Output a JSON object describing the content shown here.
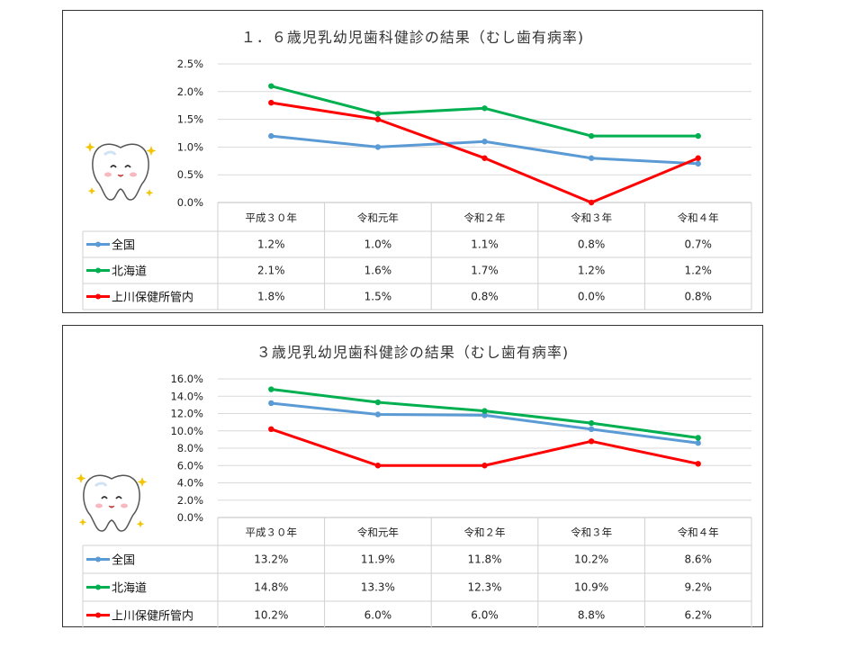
{
  "chart_data": [
    {
      "type": "line",
      "title": "１．６歳児乳幼児歯科健診の結果（むし歯有病率)",
      "categories": [
        "平成３０年",
        "令和元年",
        "令和２年",
        "令和３年",
        "令和４年"
      ],
      "ylim": [
        0,
        2.5
      ],
      "yticks": [
        "0.0%",
        "0.5%",
        "1.0%",
        "1.5%",
        "2.0%",
        "2.5%"
      ],
      "grid": true,
      "legend": "data-table",
      "series": [
        {
          "name": "全国",
          "color": "#5b9bd5",
          "values": [
            1.2,
            1.0,
            1.1,
            0.8,
            0.7
          ],
          "labels": [
            "1.2%",
            "1.0%",
            "1.1%",
            "0.8%",
            "0.7%"
          ]
        },
        {
          "name": "北海道",
          "color": "#00b050",
          "values": [
            2.1,
            1.6,
            1.7,
            1.2,
            1.2
          ],
          "labels": [
            "2.1%",
            "1.6%",
            "1.7%",
            "1.2%",
            "1.2%"
          ]
        },
        {
          "name": "上川保健所管内",
          "color": "#ff0000",
          "values": [
            1.8,
            1.5,
            0.8,
            0.0,
            0.8
          ],
          "labels": [
            "1.8%",
            "1.5%",
            "0.8%",
            "0.0%",
            "0.8%"
          ]
        }
      ]
    },
    {
      "type": "line",
      "title": "３歳児乳幼児歯科健診の結果（むし歯有病率)",
      "categories": [
        "平成３０年",
        "令和元年",
        "令和２年",
        "令和３年",
        "令和４年"
      ],
      "ylim": [
        0,
        16
      ],
      "yticks": [
        "0.0%",
        "2.0%",
        "4.0%",
        "6.0%",
        "8.0%",
        "10.0%",
        "12.0%",
        "14.0%",
        "16.0%"
      ],
      "grid": true,
      "legend": "data-table",
      "series": [
        {
          "name": "全国",
          "color": "#5b9bd5",
          "values": [
            13.2,
            11.9,
            11.8,
            10.2,
            8.6
          ],
          "labels": [
            "13.2%",
            "11.9%",
            "11.8%",
            "10.2%",
            "8.6%"
          ]
        },
        {
          "name": "北海道",
          "color": "#00b050",
          "values": [
            14.8,
            13.3,
            12.3,
            10.9,
            9.2
          ],
          "labels": [
            "14.8%",
            "13.3%",
            "12.3%",
            "10.9%",
            "9.2%"
          ]
        },
        {
          "name": "上川保健所管内",
          "color": "#ff0000",
          "values": [
            10.2,
            6.0,
            6.0,
            8.8,
            6.2
          ],
          "labels": [
            "10.2%",
            "6.0%",
            "6.0%",
            "8.8%",
            "6.2%"
          ]
        }
      ]
    }
  ]
}
